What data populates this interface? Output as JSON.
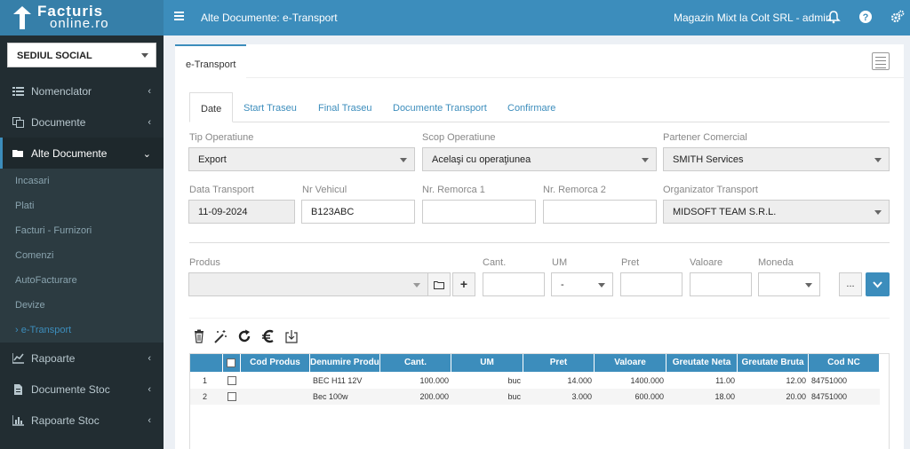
{
  "sidebar": {
    "logo_line1": "Facturis",
    "logo_line2": "online.ro",
    "branch": "SEDIUL SOCIAL",
    "items": [
      {
        "label": "Nomenclator",
        "icon": "list-icon"
      },
      {
        "label": "Documente",
        "icon": "copy-icon"
      },
      {
        "label": "Alte Documente",
        "icon": "folder-open-icon"
      },
      {
        "label": "Rapoarte",
        "icon": "line-chart-icon"
      },
      {
        "label": "Documente Stoc",
        "icon": "file-icon"
      },
      {
        "label": "Rapoarte Stoc",
        "icon": "bar-chart-icon"
      }
    ],
    "subitems": [
      "Incasari",
      "Plati",
      "Facturi - Furnizori",
      "Comenzi",
      "AutoFacturare",
      "Devize",
      "e-Transport"
    ]
  },
  "topbar": {
    "title": "Alte Documente: e-Transport",
    "user": "Magazin Mixt la Colt SRL - admin"
  },
  "panel": {
    "tab": "e-Transport"
  },
  "tabs": [
    "Date",
    "Start Traseu",
    "Final Traseu",
    "Documente Transport",
    "Confirmare"
  ],
  "form": {
    "tip_operatiune_label": "Tip Operatiune",
    "tip_operatiune": "Export",
    "scop_operatiune_label": "Scop Operatiune",
    "scop_operatiune": "Acelaşi cu operaţiunea",
    "partener_label": "Partener Comercial",
    "partener": "SMITH Services",
    "data_transport_label": "Data Transport",
    "data_transport": "11-09-2024",
    "nr_vehicul_label": "Nr Vehicul",
    "nr_vehicul": "B123ABC",
    "remorca1_label": "Nr. Remorca 1",
    "remorca1": "",
    "remorca2_label": "Nr. Remorca 2",
    "remorca2": "",
    "organizator_label": "Organizator Transport",
    "organizator": "MIDSOFT TEAM S.R.L."
  },
  "product": {
    "produs_label": "Produs",
    "cant_label": "Cant.",
    "um_label": "UM",
    "um_value": "-",
    "pret_label": "Pret",
    "valoare_label": "Valoare",
    "moneda_label": "Moneda",
    "more_label": "..."
  },
  "table": {
    "headers": [
      "Cod Produs",
      "Denumire Produs",
      "Cant.",
      "UM",
      "Pret",
      "Valoare",
      "Greutate Neta",
      "Greutate Bruta",
      "Cod NC"
    ],
    "rows": [
      {
        "nr": "1",
        "cod": "",
        "denumire": "BEC H11 12V",
        "cant": "100.000",
        "um": "buc",
        "pret": "14.000",
        "valoare": "1400.000",
        "neta": "11.00",
        "bruta": "12.00",
        "nc": "84751000"
      },
      {
        "nr": "2",
        "cod": "",
        "denumire": "Bec 100w",
        "cant": "200.000",
        "um": "buc",
        "pret": "3.000",
        "valoare": "600.000",
        "neta": "18.00",
        "bruta": "20.00",
        "nc": "84751000"
      }
    ]
  }
}
